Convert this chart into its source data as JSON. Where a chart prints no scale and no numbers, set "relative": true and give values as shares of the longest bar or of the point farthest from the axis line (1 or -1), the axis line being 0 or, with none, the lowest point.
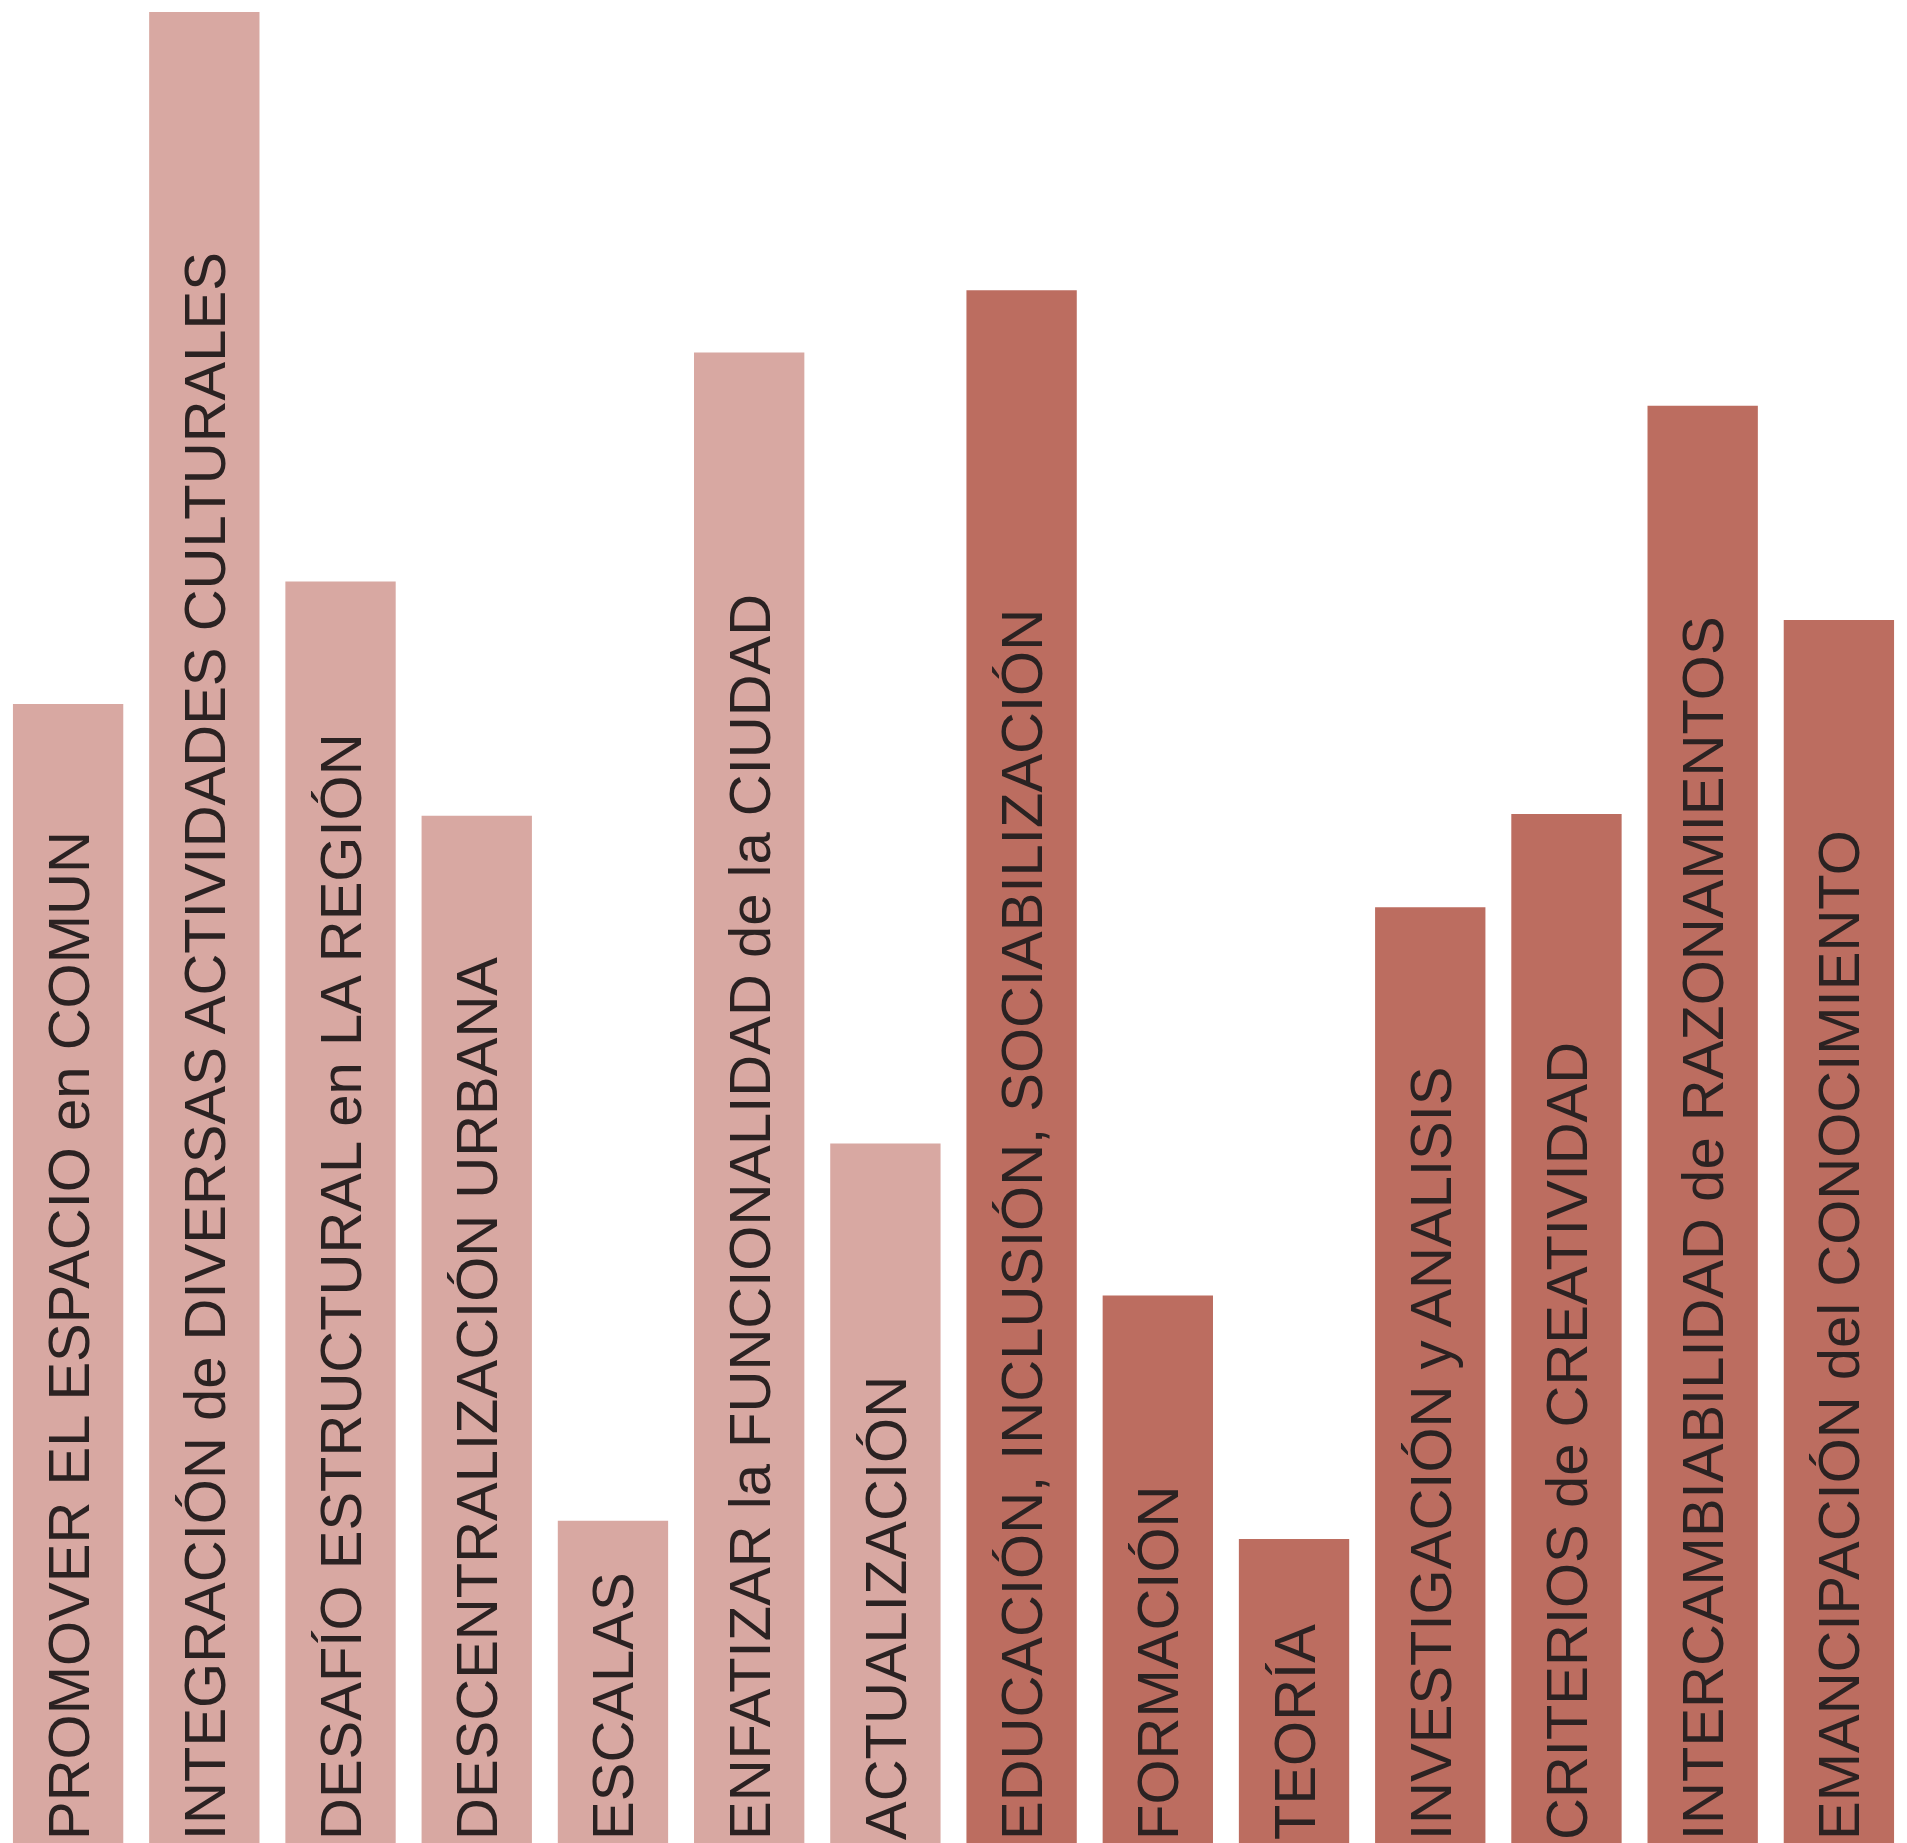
{
  "chart_data": {
    "type": "bar",
    "relative": true,
    "tick_labels": false,
    "categories": [
      "PROMOVER EL ESPACIO en COMUN",
      "INTEGRACIÓN de DIVERSAS ACTIVIDADES CULTURALES",
      "DESAFÍO ESTRUCTURAL en LA REGIÓN",
      "DESCENTRALIZACIÓN URBANA",
      "ESCALAS",
      "ENFATIZAR la FUNCIONALIDAD de la CIUDAD",
      "ACTUALIZACIÓN",
      "EDUCACIÓN, INCLUSIÓN, SOCIABILIZACIÓN",
      "FORMACIÓN",
      "TEORÍA",
      "INVESTIGACIÓN y ANALISIS",
      "CRITERIOS de CREATIVIDAD",
      "INTERCAMBIABILIDAD de RAZONAMIENTOS",
      "EMANCIPACIÓN del CONOCIMIENTO"
    ],
    "values": [
      0.622,
      1,
      0.689,
      0.561,
      0.176,
      0.814,
      0.382,
      0.848,
      0.299,
      0.166,
      0.511,
      0.562,
      0.785,
      0.668
    ],
    "colors": [
      "#d8a8a2",
      "#d8a8a2",
      "#d8a8a2",
      "#d8a8a2",
      "#d8a8a2",
      "#d8a8a2",
      "#d8a8a2",
      "#bc6d60",
      "#bc6d60",
      "#bc6d60",
      "#bc6d60",
      "#bc6d60",
      "#bc6d60",
      "#bc6d60"
    ]
  }
}
